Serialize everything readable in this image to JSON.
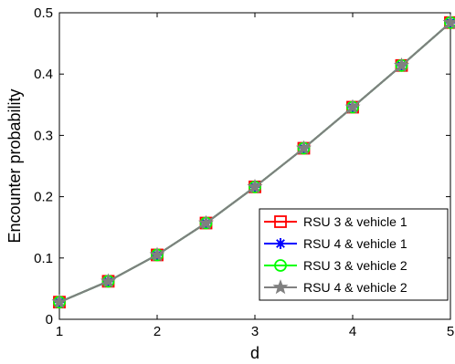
{
  "chart_data": {
    "type": "line",
    "title": "",
    "xlabel": "d",
    "ylabel": "Encounter probability",
    "xlim": [
      1,
      5
    ],
    "ylim": [
      0,
      0.5
    ],
    "xticks": [
      "1",
      "2",
      "3",
      "4",
      "5"
    ],
    "yticks": [
      "0",
      "0.1",
      "0.2",
      "0.3",
      "0.4",
      "0.5"
    ],
    "grid": false,
    "legend_position": "bottom-right",
    "x": [
      1,
      1.5,
      2,
      2.5,
      3,
      3.5,
      4,
      4.5,
      5
    ],
    "series": [
      {
        "name": "RSU 3 & vehicle 1",
        "color": "#ff0000",
        "marker": "square",
        "values": [
          0.028,
          0.062,
          0.105,
          0.157,
          0.216,
          0.279,
          0.346,
          0.414,
          0.484
        ]
      },
      {
        "name": "RSU 4 & vehicle 1",
        "color": "#0000ff",
        "marker": "asterisk",
        "values": [
          0.028,
          0.062,
          0.105,
          0.157,
          0.216,
          0.279,
          0.346,
          0.414,
          0.484
        ]
      },
      {
        "name": "RSU 3 & vehicle 2",
        "color": "#00ff00",
        "marker": "circle",
        "values": [
          0.028,
          0.062,
          0.105,
          0.157,
          0.216,
          0.279,
          0.346,
          0.414,
          0.484
        ]
      },
      {
        "name": "RSU 4 & vehicle 2",
        "color": "#808080",
        "marker": "star",
        "values": [
          0.028,
          0.062,
          0.105,
          0.157,
          0.216,
          0.279,
          0.346,
          0.414,
          0.484
        ]
      }
    ]
  }
}
